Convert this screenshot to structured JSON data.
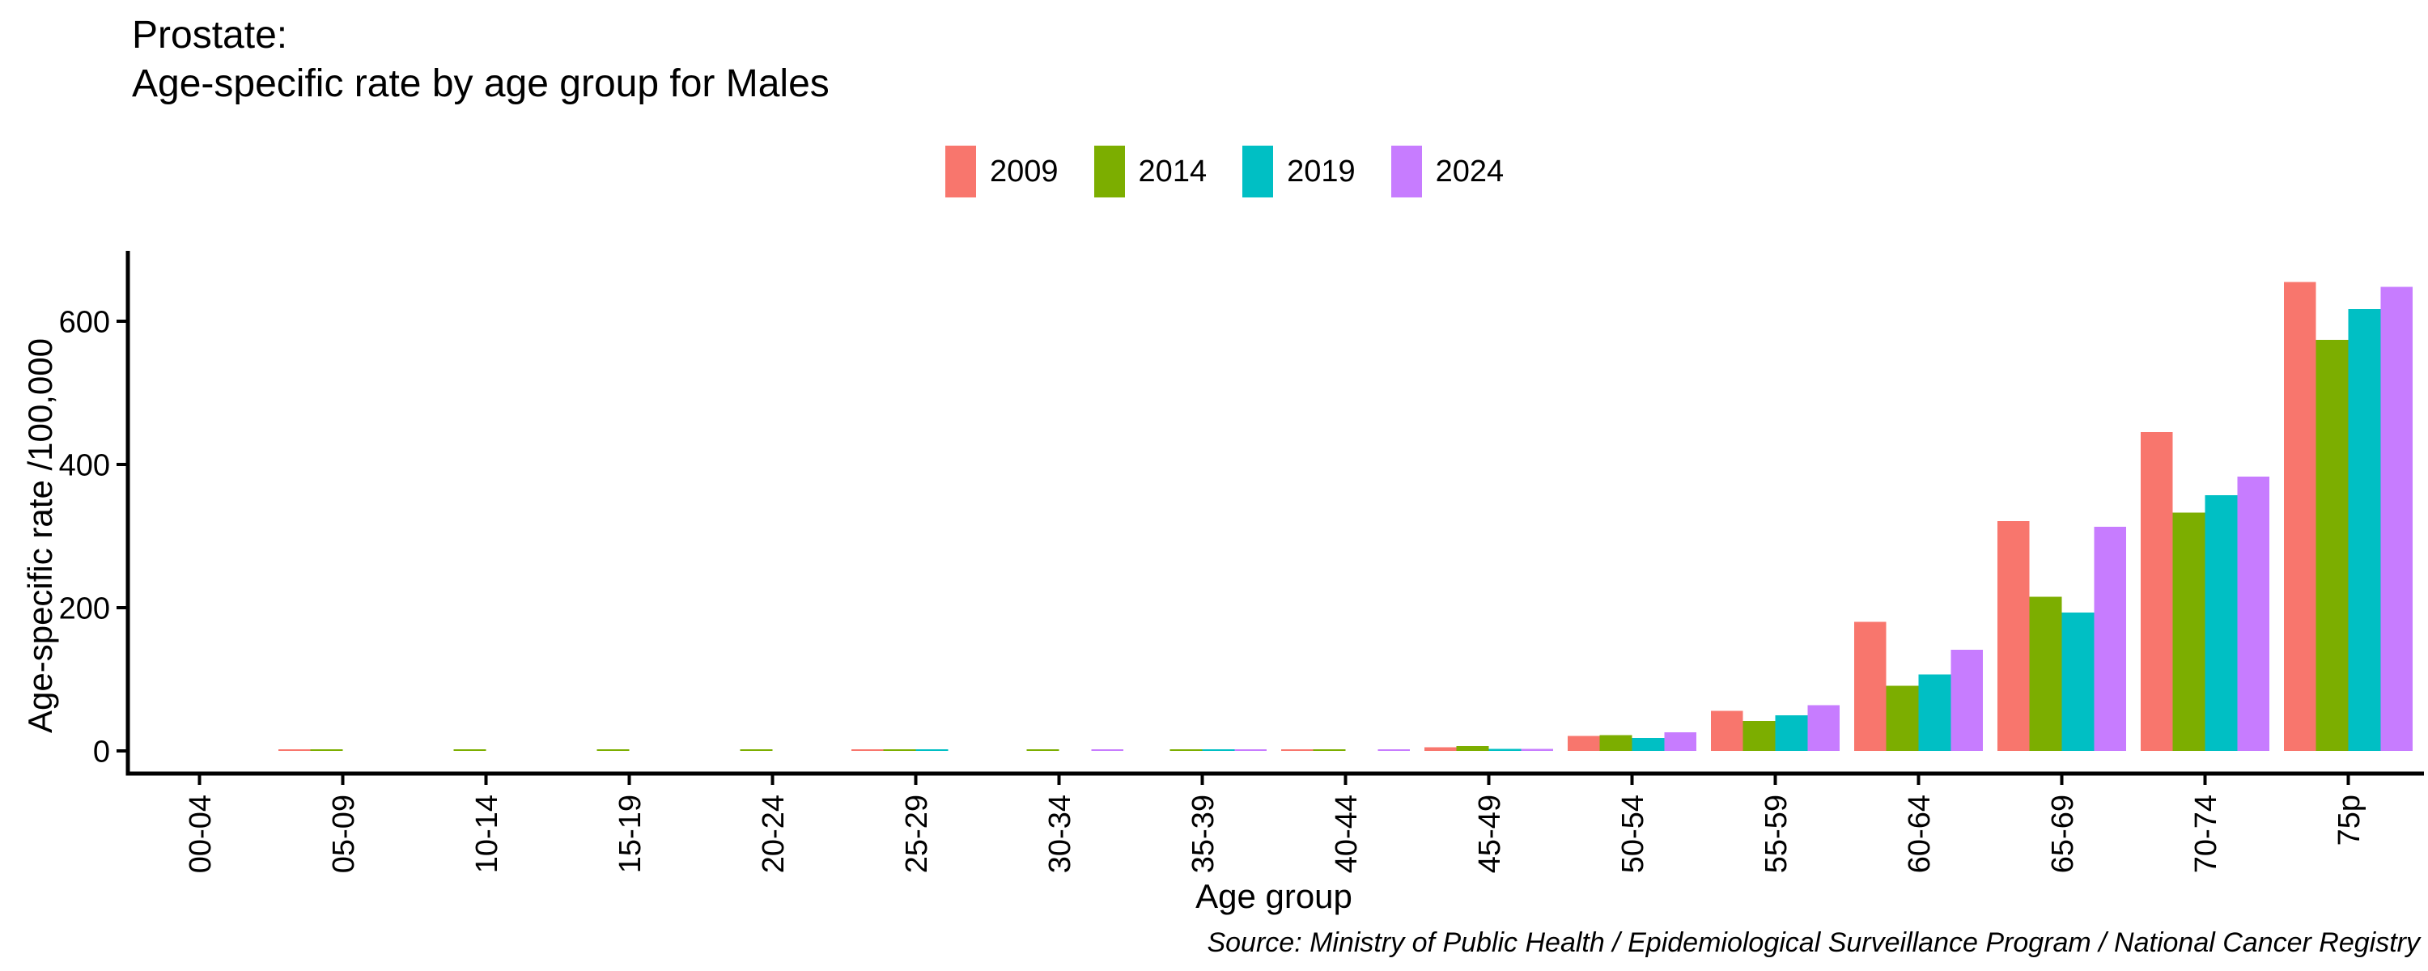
{
  "title": {
    "line1": "Prostate:",
    "line2": "Age-specific rate by age group for Males"
  },
  "source": "Source: Ministry of Public Health / Epidemiological Surveillance Program / National Cancer Registry",
  "chart_data": {
    "type": "bar",
    "bar_grouping": "dodge",
    "title": "Prostate: Age-specific rate by age group for Males",
    "xlabel": "Age group",
    "ylabel": "Age-specific rate /100,000",
    "categories": [
      "00-04",
      "05-09",
      "10-14",
      "15-19",
      "20-24",
      "25-29",
      "30-34",
      "35-39",
      "40-44",
      "45-49",
      "50-54",
      "55-59",
      "60-64",
      "65-69",
      "70-74",
      "75p"
    ],
    "series": [
      {
        "name": "2009",
        "color": "#F8766D",
        "values": [
          0,
          2,
          0,
          0,
          0,
          1,
          0,
          0,
          2,
          5,
          21,
          56,
          180,
          321,
          445,
          655
        ]
      },
      {
        "name": "2014",
        "color": "#7CAE00",
        "values": [
          0,
          2,
          1,
          1,
          1,
          2,
          1,
          1,
          2,
          7,
          22,
          42,
          91,
          215,
          333,
          574
        ]
      },
      {
        "name": "2019",
        "color": "#00BFC4",
        "values": [
          0,
          0,
          0,
          0,
          0,
          1,
          0,
          1,
          0,
          3,
          18,
          50,
          107,
          193,
          357,
          617
        ]
      },
      {
        "name": "2024",
        "color": "#C77CFF",
        "values": [
          0,
          0,
          0,
          0,
          0,
          0,
          1,
          1,
          1,
          3,
          26,
          64,
          141,
          313,
          383,
          648
        ]
      }
    ],
    "y_ticks": [
      0,
      200,
      400,
      600
    ],
    "ylim": [
      0,
      700
    ],
    "grid": "off",
    "legend_position": "top-center",
    "axis_color": "#000000",
    "text_color": "#000000"
  }
}
